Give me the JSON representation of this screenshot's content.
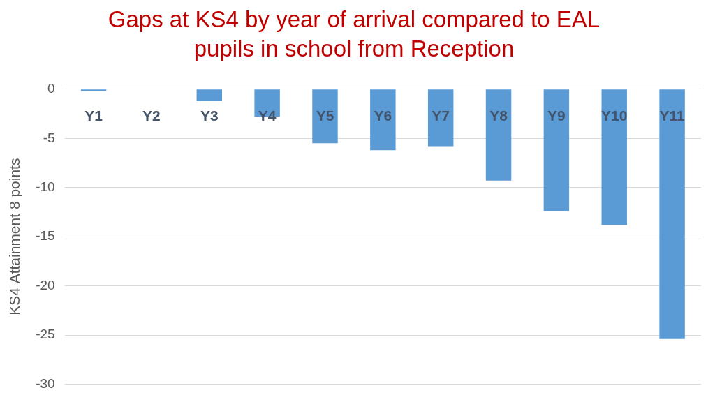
{
  "chart_data": {
    "type": "bar",
    "title": [
      "Gaps at KS4 by year of arrival compared to EAL",
      "pupils in school from Reception"
    ],
    "y_label": "KS4 Attainment 8 points",
    "categories": [
      "Y1",
      "Y2",
      "Y3",
      "Y4",
      "Y5",
      "Y6",
      "Y7",
      "Y8",
      "Y9",
      "Y10",
      "Y11"
    ],
    "values": [
      -0.2,
      0,
      -1.2,
      -2.8,
      -5.5,
      -6.2,
      -5.8,
      -9.3,
      -12.4,
      -13.8,
      -25.4
    ],
    "color": "#5b9bd5",
    "ylim": [
      -30,
      0
    ],
    "yticks": [
      -30,
      -25,
      -20,
      -15,
      -10,
      -5,
      0
    ],
    "grid": true
  }
}
